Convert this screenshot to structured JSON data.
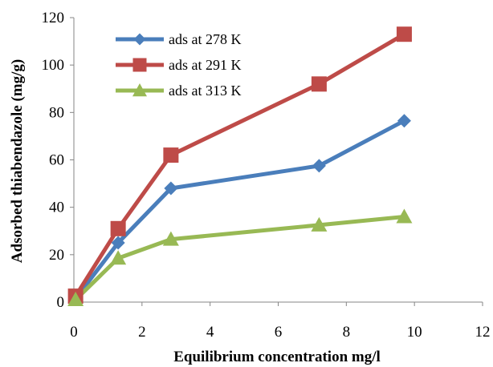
{
  "chart_data": {
    "type": "line",
    "xlabel": "Equilibrium concentration mg/l",
    "ylabel": "Adsorbed thiabendazole  (mg/g)",
    "xlim": [
      0,
      12
    ],
    "ylim": [
      0,
      120
    ],
    "xticks": [
      0,
      2,
      4,
      6,
      8,
      10,
      12
    ],
    "yticks": [
      0,
      20,
      40,
      60,
      80,
      100,
      120
    ],
    "grid": false,
    "legend_position": "top-left",
    "series": [
      {
        "name": "ads at 278 K",
        "color": "#4a7ebb",
        "marker": "diamond",
        "x": [
          0.05,
          1.3,
          2.85,
          7.2,
          9.7
        ],
        "y": [
          1.5,
          25,
          48,
          57.5,
          76.5
        ]
      },
      {
        "name": "ads at 291 K",
        "color": "#be4b48",
        "marker": "square",
        "x": [
          0.05,
          1.3,
          2.85,
          7.2,
          9.7
        ],
        "y": [
          2.5,
          31,
          62,
          92,
          113
        ]
      },
      {
        "name": "ads at 313 K",
        "color": "#98b954",
        "marker": "triangle",
        "x": [
          0.05,
          1.3,
          2.85,
          7.2,
          9.7
        ],
        "y": [
          1,
          18.5,
          26.5,
          32.5,
          36
        ]
      }
    ]
  }
}
